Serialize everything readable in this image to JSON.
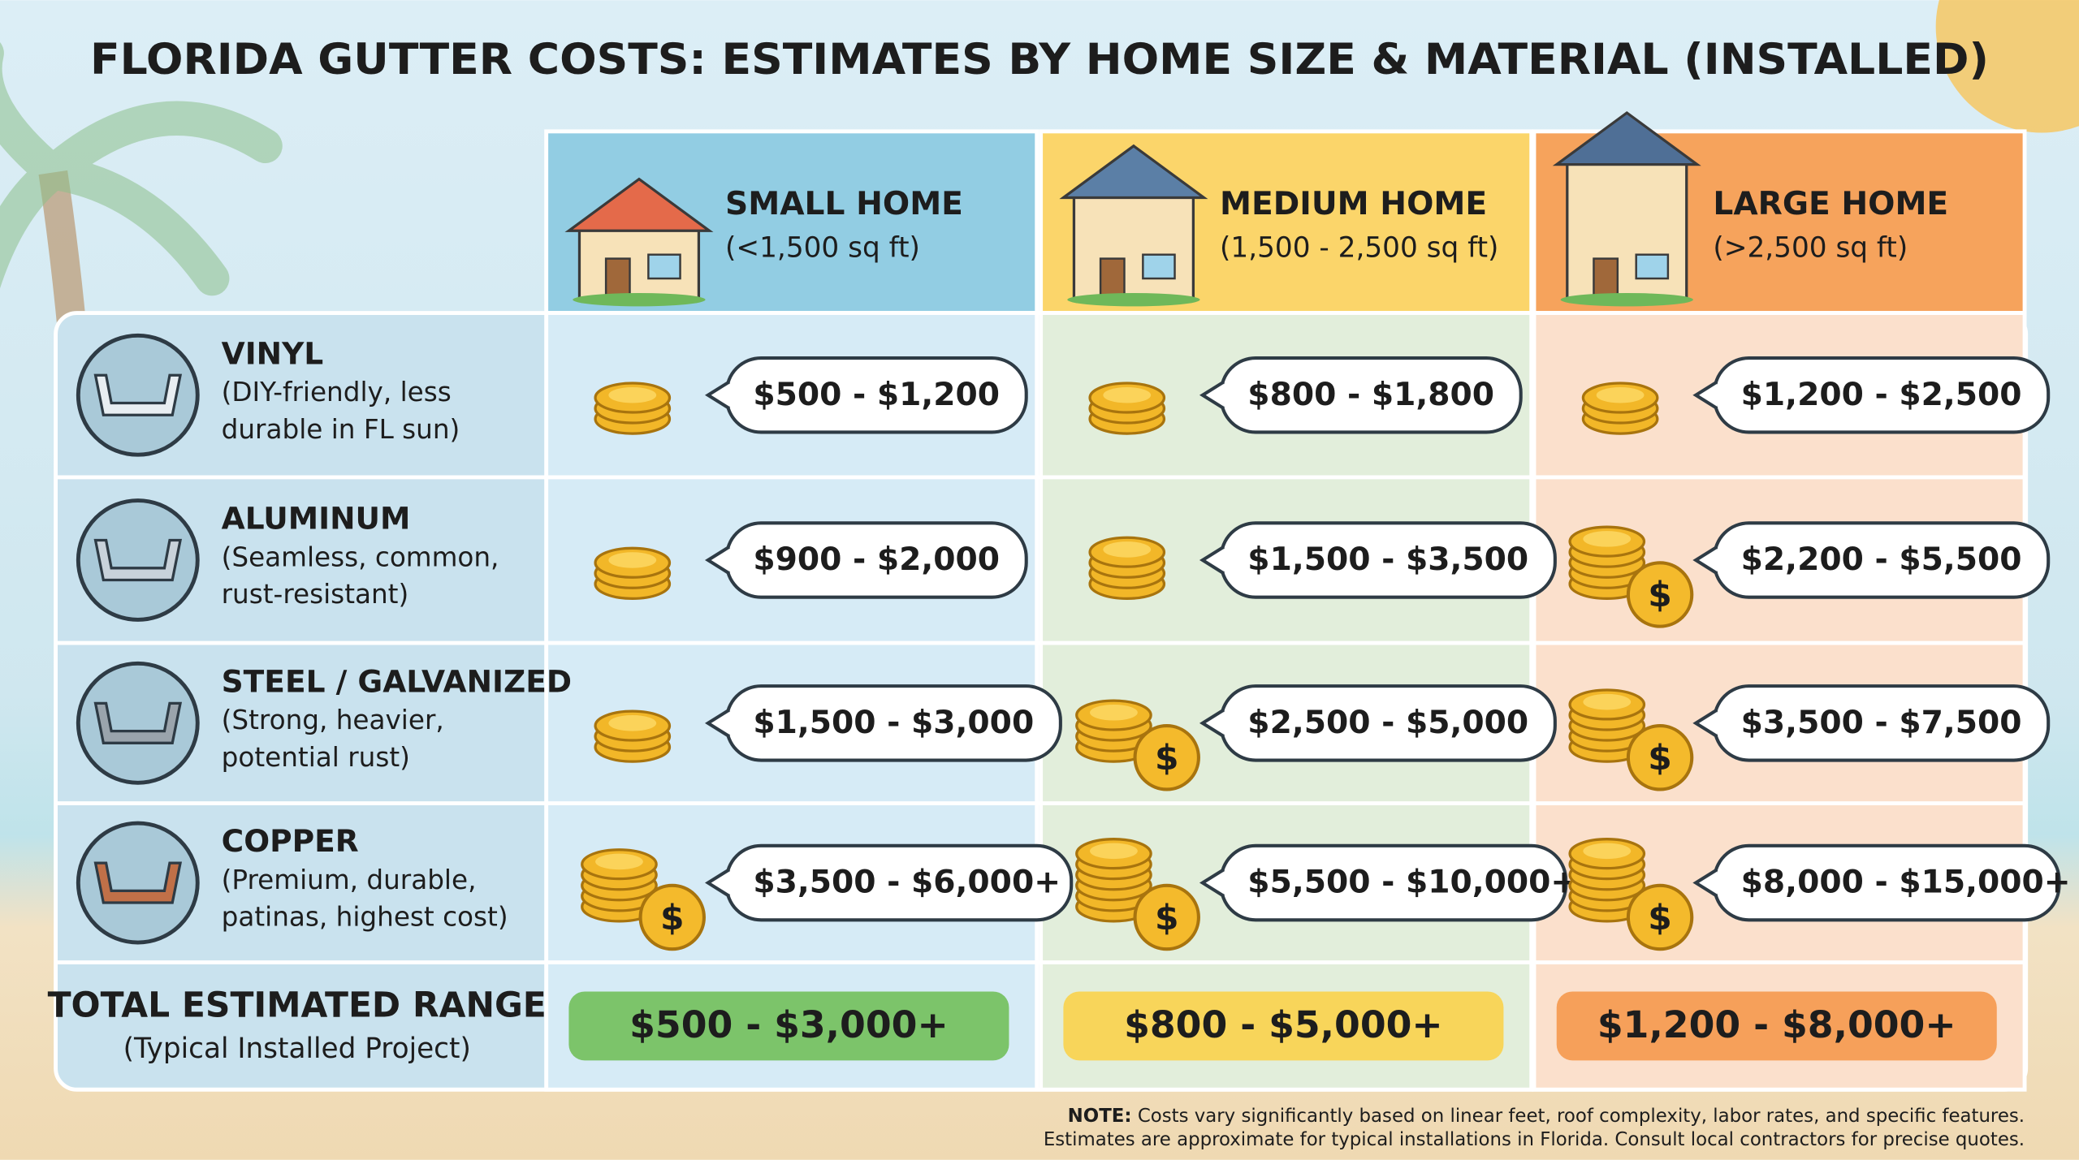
{
  "title": "FLORIDA GUTTER COSTS: ESTIMATES BY HOME SIZE & MATERIAL (INSTALLED)",
  "columns": [
    {
      "name": "SMALL HOME",
      "size": "(<1,500 sq ft)"
    },
    {
      "name": "MEDIUM HOME",
      "size": "(1,500 - 2,500 sq ft)"
    },
    {
      "name": "LARGE HOME",
      "size": "(>2,500 sq ft)"
    }
  ],
  "rows": [
    {
      "material": "VINYL",
      "description": [
        "(DIY-friendly, less",
        "durable in FL sun)"
      ],
      "prices": [
        "$500 - $1,200",
        "$800 - $1,800",
        "$1,200 - $2,500"
      ]
    },
    {
      "material": "ALUMINUM",
      "description": [
        "(Seamless, common,",
        "rust-resistant)"
      ],
      "prices": [
        "$900 - $2,000",
        "$1,500 - $3,500",
        "$2,200 - $5,500"
      ]
    },
    {
      "material": "STEEL / GALVANIZED",
      "description": [
        "(Strong, heavier,",
        "potential rust)"
      ],
      "prices": [
        "$1,500 - $3,000",
        "$2,500 - $5,000",
        "$3,500 - $7,500"
      ]
    },
    {
      "material": "COPPER",
      "description": [
        "(Premium, durable,",
        "patinas, highest cost)"
      ],
      "prices": [
        "$3,500 - $6,000+",
        "$5,500 - $10,000+",
        "$8,000 - $15,000+"
      ]
    }
  ],
  "totals": {
    "label": "TOTAL ESTIMATED RANGE",
    "sublabel": "(Typical Installed Project)",
    "values": [
      "$500 - $3,000+",
      "$800 - $5,000+",
      "$1,200 - $8,000+"
    ]
  },
  "note": {
    "label": "NOTE:",
    "lines": [
      "Costs vary significantly based on linear feet, roof complexity, labor rates, and specific features.",
      "Estimates are approximate for typical installations in Florida. Consult local contractors for precise quotes."
    ]
  }
}
